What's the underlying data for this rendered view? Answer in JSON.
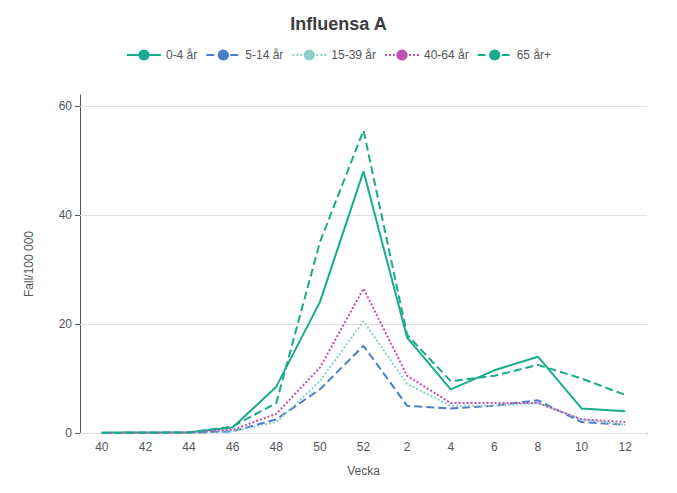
{
  "chart_data": {
    "type": "line",
    "title": "Influensa A",
    "xlabel": "Vecka",
    "ylabel": "Fall/100 000",
    "categories": [
      40,
      42,
      44,
      46,
      48,
      50,
      52,
      2,
      4,
      6,
      8,
      10,
      12
    ],
    "series": [
      {
        "name": "0-4 år",
        "color": "#1aab8a",
        "line_style": "solid",
        "values": [
          0.1,
          0.1,
          0.15,
          1.0,
          8.5,
          24.0,
          48.0,
          17.5,
          8.0,
          11.5,
          14.0,
          4.5,
          4.0
        ]
      },
      {
        "name": "5-14 år",
        "color": "#4a7dca",
        "line_style": "dashed",
        "values": [
          0.0,
          0.05,
          0.05,
          0.3,
          2.5,
          8.0,
          16.0,
          5.0,
          4.5,
          5.0,
          6.0,
          2.0,
          1.5
        ]
      },
      {
        "name": "15-39 år",
        "color": "#8ecfc9",
        "line_style": "dotted",
        "values": [
          0.0,
          0.05,
          0.05,
          0.3,
          2.0,
          9.5,
          20.5,
          9.0,
          5.0,
          5.0,
          5.5,
          2.5,
          1.5
        ]
      },
      {
        "name": "40-64 år",
        "color": "#c050b0",
        "line_style": "dotted",
        "values": [
          0.0,
          0.05,
          0.1,
          0.6,
          3.5,
          12.0,
          26.5,
          10.5,
          5.5,
          5.5,
          5.5,
          2.5,
          2.0
        ]
      },
      {
        "name": "65 år+",
        "color": "#1aab8a",
        "line_style": "dashed",
        "values": [
          0.0,
          0.05,
          0.1,
          1.2,
          5.5,
          35.0,
          55.5,
          18.0,
          9.5,
          10.5,
          12.5,
          10.0,
          7.0
        ]
      }
    ],
    "ylim": [
      0,
      62
    ],
    "yticks": [
      0,
      20,
      40,
      60
    ],
    "grid": true,
    "legend": "top"
  }
}
